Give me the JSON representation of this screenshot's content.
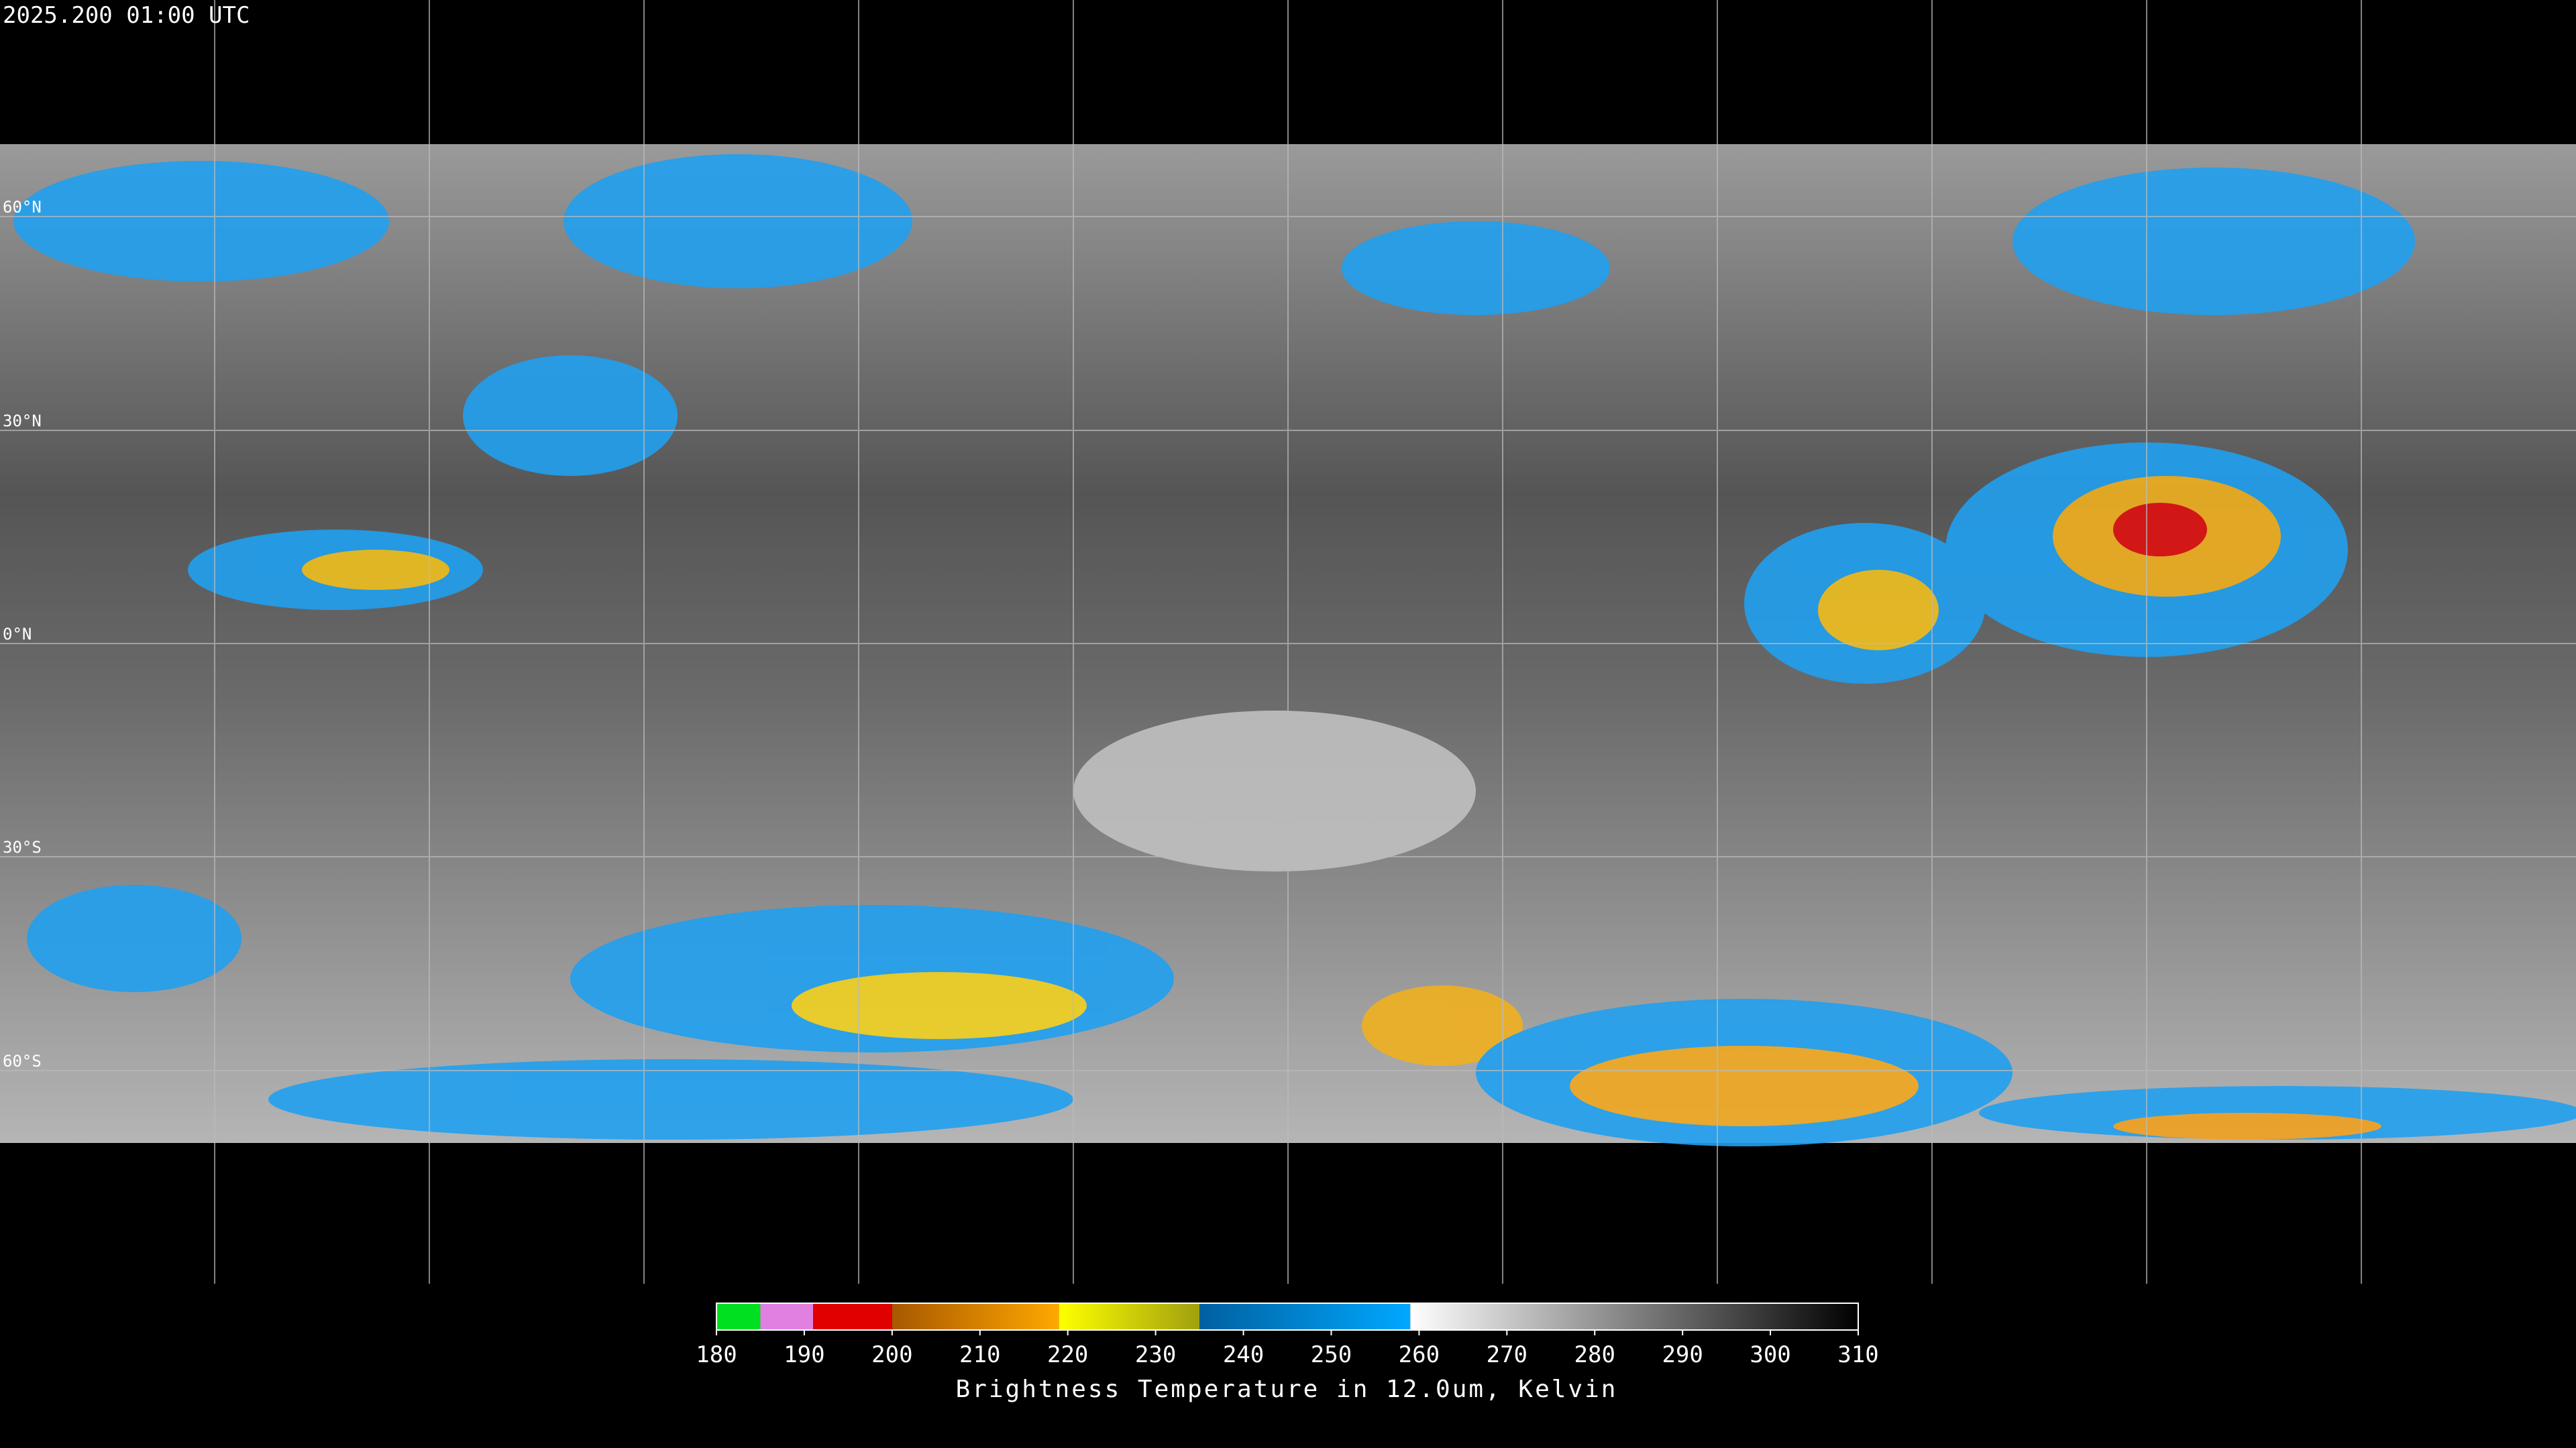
{
  "title": "2025.200 01:00 UTC",
  "lat_labels": [
    "60°N",
    "30°N",
    "0°N",
    "30°S",
    "60°S"
  ],
  "colorbar": {
    "range": [
      180,
      310
    ],
    "ticks": [
      180,
      190,
      200,
      210,
      220,
      230,
      240,
      250,
      260,
      270,
      280,
      290,
      300,
      310
    ],
    "label": "Brightness Temperature in 12.0um, Kelvin",
    "stops": [
      {
        "from": 180,
        "to": 185,
        "colors": [
          "#00e020",
          "#00e020"
        ]
      },
      {
        "from": 185,
        "to": 191,
        "colors": [
          "#e080e0",
          "#e080e0"
        ]
      },
      {
        "from": 191,
        "to": 200,
        "colors": [
          "#e00000",
          "#e00000"
        ]
      },
      {
        "from": 200,
        "to": 219,
        "colors": [
          "#a85800",
          "#ffa800"
        ]
      },
      {
        "from": 219,
        "to": 235,
        "colors": [
          "#ffff00",
          "#a0a010"
        ]
      },
      {
        "from": 235,
        "to": 259,
        "colors": [
          "#0060a0",
          "#00a8ff"
        ]
      },
      {
        "from": 259,
        "to": 310,
        "colors": [
          "#ffffff",
          "#000000"
        ]
      }
    ]
  }
}
